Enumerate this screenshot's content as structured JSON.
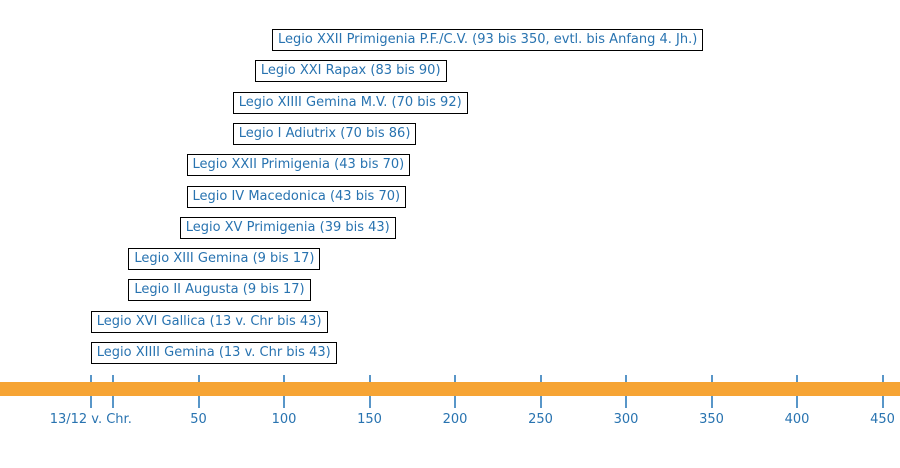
{
  "chart_data": {
    "type": "timeline",
    "title": "",
    "orientation": "horizontal",
    "xlim": [
      -66,
      460
    ],
    "legend": "none",
    "grid": false,
    "axis": {
      "unit": "Jahr",
      "ticks": [
        {
          "value": -13,
          "label": "13/12 v. Chr."
        },
        {
          "value": 0,
          "label": ""
        },
        {
          "value": 50,
          "label": "50"
        },
        {
          "value": 100,
          "label": "100"
        },
        {
          "value": 150,
          "label": "150"
        },
        {
          "value": 200,
          "label": "200"
        },
        {
          "value": 250,
          "label": "250"
        },
        {
          "value": 300,
          "label": "300"
        },
        {
          "value": 350,
          "label": "350"
        },
        {
          "value": 400,
          "label": "400"
        },
        {
          "value": 450,
          "label": "450"
        }
      ]
    },
    "series": [
      {
        "label": "Legio XXII Primigenia P.F./C.V. (93 bis 350, evtl. bis Anfang 4. Jh.)",
        "start": 93,
        "end": 350
      },
      {
        "label": "Legio XXI Rapax (83 bis 90)",
        "start": 83,
        "end": 90
      },
      {
        "label": "Legio XIIII Gemina M.V. (70 bis 92)",
        "start": 70,
        "end": 92
      },
      {
        "label": "Legio I Adiutrix (70 bis 86)",
        "start": 70,
        "end": 86
      },
      {
        "label": "Legio XXII Primigenia (43 bis 70)",
        "start": 43,
        "end": 70
      },
      {
        "label": "Legio IV Macedonica (43 bis 70)",
        "start": 43,
        "end": 70
      },
      {
        "label": "Legio XV Primigenia (39 bis 43)",
        "start": 39,
        "end": 43
      },
      {
        "label": "Legio XIII Gemina (9 bis 17)",
        "start": 9,
        "end": 17
      },
      {
        "label": "Legio II Augusta (9 bis 17)",
        "start": 9,
        "end": 17
      },
      {
        "label": "Legio XVI Gallica (13 v. Chr bis 43)",
        "start": -13,
        "end": 43
      },
      {
        "label": "Legio XIIII Gemina (13 v. Chr bis 43)",
        "start": -13,
        "end": 43
      }
    ],
    "colors": {
      "bar": "#F6A434",
      "tick": "#5996C8",
      "text": "#2873B0",
      "box_border": "#000000",
      "background": "#FFFFFF"
    }
  }
}
